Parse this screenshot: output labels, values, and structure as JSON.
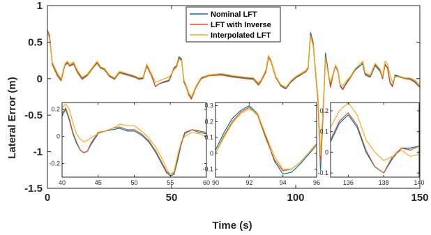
{
  "chart_data": [
    {
      "type": "line",
      "xlabel": "Time (s)",
      "ylabel": "Lateral Error (m)",
      "xlim": [
        0,
        150
      ],
      "ylim": [
        -1.5,
        1
      ],
      "xticks": [
        0,
        50,
        100,
        150
      ],
      "yticks": [
        -1.5,
        -1,
        -0.5,
        0,
        0.5,
        1
      ],
      "xtick_labels": [
        "0",
        "50",
        "100",
        "150"
      ],
      "ytick_labels": [
        "-1.5",
        "-1",
        "-0.5",
        "0",
        "0.5",
        "1"
      ],
      "legend_position": "top-center",
      "series": [
        {
          "name": "Nominal LFT",
          "color": "#0072BD",
          "x": [
            0,
            0.8,
            2,
            4,
            5.5,
            7,
            8,
            9,
            10.5,
            12,
            14,
            16,
            18,
            20,
            21.5,
            23,
            25,
            27,
            29,
            31,
            33,
            35,
            37,
            38.5,
            40,
            42,
            43.5,
            45,
            47,
            49,
            51,
            52,
            53,
            54,
            55,
            56,
            57,
            58,
            60,
            62,
            65,
            70,
            75,
            80,
            83,
            85,
            86,
            88,
            89,
            90,
            92,
            94,
            96,
            98,
            100,
            102,
            104,
            105,
            106,
            107,
            108,
            109,
            110,
            111,
            112,
            113,
            114,
            115,
            116,
            117,
            118,
            119,
            120,
            122,
            124,
            126,
            127,
            128,
            130,
            132,
            134,
            135,
            136,
            137,
            138,
            139,
            140,
            142,
            144,
            146,
            148,
            150
          ],
          "values": [
            0.66,
            0.6,
            0.2,
            0.05,
            -0.02,
            0.19,
            0.22,
            0.17,
            0.2,
            0.1,
            0,
            0.05,
            0.14,
            0.21,
            0.14,
            0.13,
            0.04,
            0.0,
            0.09,
            0.07,
            0.05,
            0.03,
            0.0,
            0.01,
            0.17,
            0.04,
            -0.11,
            -0.07,
            -0.05,
            -0.03,
            0.14,
            0.17,
            0.3,
            0.27,
            -0.05,
            -0.12,
            -0.22,
            -0.27,
            -0.11,
            0.01,
            0.05,
            0.06,
            0.03,
            0.01,
            0.0,
            -0.08,
            -0.03,
            0.1,
            0.3,
            0.25,
            0.02,
            -0.1,
            -0.14,
            -0.05,
            0.01,
            0.05,
            0.1,
            0.15,
            0.63,
            0.5,
            0.1,
            -0.3,
            -1.25,
            -0.5,
            0.35,
            0.12,
            -0.1,
            0.05,
            0.17,
            0.1,
            -0.1,
            -0.14,
            -0.08,
            0.02,
            0.12,
            0.18,
            0.2,
            0.05,
            0.02,
            0.18,
            0.1,
            0.0,
            0.2,
            0.15,
            -0.05,
            -0.1,
            0.05,
            0.03,
            0.01,
            0.0,
            -0.04,
            -0.11
          ]
        },
        {
          "name": "LFT with Inverse",
          "color": "#D95319",
          "x": [
            0,
            0.8,
            2,
            4,
            5.5,
            7,
            8,
            9,
            10.5,
            12,
            14,
            16,
            18,
            20,
            21.5,
            23,
            25,
            27,
            29,
            31,
            33,
            35,
            37,
            38.5,
            40,
            42,
            43.5,
            45,
            47,
            49,
            51,
            52,
            53,
            54,
            55,
            56,
            57,
            58,
            60,
            62,
            65,
            70,
            75,
            80,
            83,
            85,
            86,
            88,
            89,
            90,
            92,
            94,
            96,
            98,
            100,
            102,
            104,
            105,
            106,
            107,
            108,
            109,
            110,
            111,
            112,
            113,
            114,
            115,
            116,
            117,
            118,
            119,
            120,
            122,
            124,
            126,
            127,
            128,
            130,
            132,
            134,
            135,
            136,
            137,
            138,
            139,
            140,
            142,
            144,
            146,
            148,
            150
          ],
          "values": [
            0.66,
            0.58,
            0.19,
            0.04,
            -0.03,
            0.18,
            0.21,
            0.18,
            0.21,
            0.09,
            -0.01,
            0.04,
            0.13,
            0.22,
            0.15,
            0.12,
            0.03,
            -0.01,
            0.08,
            0.06,
            0.04,
            0.02,
            -0.01,
            0.0,
            0.18,
            0.03,
            -0.11,
            -0.07,
            -0.04,
            -0.02,
            0.15,
            0.18,
            0.28,
            0.26,
            -0.04,
            -0.12,
            -0.23,
            -0.28,
            -0.1,
            0.0,
            0.04,
            0.05,
            0.02,
            0.0,
            -0.01,
            -0.09,
            -0.04,
            0.09,
            0.29,
            0.24,
            0.01,
            -0.09,
            -0.13,
            -0.04,
            0.02,
            0.06,
            0.09,
            0.14,
            0.6,
            0.48,
            0.08,
            -0.32,
            -1.15,
            -0.48,
            0.3,
            0.1,
            -0.12,
            0.04,
            0.18,
            0.11,
            -0.11,
            -0.15,
            -0.09,
            0.01,
            0.13,
            0.2,
            0.22,
            0.07,
            0.03,
            0.2,
            0.11,
            0.01,
            0.19,
            0.14,
            -0.06,
            -0.11,
            0.04,
            0.02,
            0.0,
            -0.01,
            -0.05,
            -0.12
          ]
        },
        {
          "name": "Interpolated LFT",
          "color": "#EDB120",
          "x": [
            0,
            0.8,
            2,
            4,
            5.5,
            7,
            8,
            9,
            10.5,
            12,
            14,
            16,
            18,
            20,
            21.5,
            23,
            25,
            27,
            29,
            31,
            33,
            35,
            37,
            38.5,
            40,
            42,
            43.5,
            45,
            47,
            49,
            51,
            52,
            53,
            54,
            55,
            56,
            57,
            58,
            60,
            62,
            65,
            70,
            75,
            80,
            83,
            85,
            86,
            88,
            89,
            90,
            92,
            94,
            96,
            98,
            100,
            102,
            104,
            105,
            106,
            107,
            108,
            109,
            110,
            111,
            112,
            113,
            114,
            115,
            116,
            117,
            118,
            119,
            120,
            122,
            124,
            126,
            127,
            128,
            130,
            132,
            134,
            135,
            136,
            137,
            138,
            139,
            140,
            142,
            144,
            146,
            148,
            150
          ],
          "values": [
            0.64,
            0.55,
            0.22,
            0.08,
            0.0,
            0.2,
            0.24,
            0.19,
            0.23,
            0.12,
            0.02,
            0.06,
            0.15,
            0.24,
            0.16,
            0.14,
            0.05,
            0.01,
            0.1,
            0.08,
            0.06,
            0.04,
            0.01,
            0.02,
            0.2,
            0.06,
            -0.05,
            -0.03,
            0.0,
            0.02,
            0.12,
            0.15,
            0.26,
            0.25,
            -0.02,
            -0.1,
            -0.2,
            -0.25,
            -0.09,
            0.02,
            0.05,
            0.07,
            0.04,
            0.02,
            0.01,
            -0.06,
            -0.02,
            0.12,
            0.32,
            0.26,
            0.03,
            -0.08,
            -0.12,
            -0.03,
            0.03,
            0.07,
            0.11,
            0.16,
            0.58,
            0.45,
            0.12,
            -0.25,
            -1.05,
            -0.4,
            0.28,
            0.08,
            -0.05,
            0.06,
            0.19,
            0.12,
            -0.08,
            -0.1,
            -0.05,
            0.03,
            0.14,
            0.2,
            0.24,
            0.08,
            0.05,
            0.21,
            0.13,
            0.03,
            0.24,
            0.2,
            0.05,
            -0.05,
            0.02,
            0.03,
            0.01,
            0.01,
            -0.02,
            -0.08
          ]
        }
      ]
    },
    {
      "type": "line",
      "inset": 1,
      "xlim": [
        40,
        60
      ],
      "ylim": [
        -0.3,
        0.25
      ],
      "xticks": [
        40,
        45,
        50,
        55,
        60
      ],
      "yticks": [
        -0.2,
        0,
        0.2
      ],
      "xtick_labels": [
        "40",
        "45",
        "50",
        "55",
        "60"
      ],
      "ytick_labels": [
        "-0.2",
        "0",
        "0.2"
      ],
      "series": [
        {
          "color": "#0072BD",
          "x": [
            40,
            40.5,
            41,
            41.5,
            42,
            42.5,
            43,
            43.5,
            44,
            45,
            46,
            47,
            48,
            49,
            50,
            51,
            52,
            53,
            54,
            54.5,
            55,
            55.5,
            56,
            56.5,
            57,
            58,
            59,
            60
          ],
          "values": [
            0.15,
            0.2,
            0.12,
            0.02,
            -0.05,
            -0.1,
            -0.12,
            -0.11,
            -0.06,
            0.02,
            0.04,
            0.05,
            0.06,
            0.04,
            0.04,
            0.01,
            -0.04,
            -0.12,
            -0.22,
            -0.27,
            -0.29,
            -0.28,
            -0.18,
            -0.06,
            0.02,
            0.05,
            0.03,
            0.02
          ]
        },
        {
          "color": "#D95319",
          "x": [
            40,
            40.5,
            41,
            41.5,
            42,
            42.5,
            43,
            43.5,
            44,
            45,
            46,
            47,
            48,
            49,
            50,
            51,
            52,
            53,
            54,
            54.5,
            55,
            55.5,
            56,
            56.5,
            57,
            58,
            59,
            60
          ],
          "values": [
            0.17,
            0.21,
            0.13,
            0.03,
            -0.04,
            -0.1,
            -0.12,
            -0.11,
            -0.05,
            0.03,
            0.04,
            0.06,
            0.07,
            0.05,
            0.05,
            0.02,
            -0.03,
            -0.11,
            -0.21,
            -0.26,
            -0.28,
            -0.27,
            -0.16,
            -0.05,
            0.03,
            0.05,
            0.04,
            0.03
          ]
        },
        {
          "color": "#EDB120",
          "x": [
            40,
            40.5,
            41,
            41.5,
            42,
            42.5,
            43,
            43.5,
            44,
            45,
            46,
            47,
            48,
            49,
            50,
            51,
            52,
            53,
            54,
            54.5,
            55,
            55.5,
            56,
            56.5,
            57,
            58,
            59,
            60
          ],
          "values": [
            0.21,
            0.24,
            0.2,
            0.1,
            0.02,
            -0.02,
            -0.04,
            -0.03,
            -0.01,
            0.02,
            0.04,
            0.06,
            0.09,
            0.08,
            0.08,
            0.04,
            -0.01,
            -0.08,
            -0.18,
            -0.24,
            -0.28,
            -0.26,
            -0.14,
            -0.04,
            0.0,
            0.03,
            0.02,
            0.0
          ]
        }
      ]
    },
    {
      "type": "line",
      "inset": 2,
      "xlim": [
        90,
        96
      ],
      "ylim": [
        -0.15,
        0.32
      ],
      "xticks": [
        90,
        92,
        94,
        96
      ],
      "yticks": [
        -0.1,
        0,
        0.1,
        0.2,
        0.3
      ],
      "xtick_labels": [
        "90",
        "92",
        "94",
        "96"
      ],
      "ytick_labels": [
        "-0.1",
        "0",
        "0.1",
        "0.2",
        "0.3"
      ],
      "series": [
        {
          "color": "#0072BD",
          "x": [
            90,
            90.5,
            91,
            91.5,
            92,
            92.5,
            93,
            93.5,
            94,
            94.5,
            95,
            95.5,
            96
          ],
          "values": [
            0.02,
            0.13,
            0.22,
            0.27,
            0.3,
            0.25,
            0.1,
            -0.05,
            -0.13,
            -0.12,
            -0.07,
            -0.01,
            0.05
          ]
        },
        {
          "color": "#D95319",
          "x": [
            90,
            90.5,
            91,
            91.5,
            92,
            92.5,
            93,
            93.5,
            94,
            94.5,
            95,
            95.5,
            96
          ],
          "values": [
            0.0,
            0.11,
            0.2,
            0.26,
            0.29,
            0.24,
            0.09,
            -0.04,
            -0.11,
            -0.1,
            -0.06,
            0.0,
            0.06
          ]
        },
        {
          "color": "#EDB120",
          "x": [
            90,
            90.5,
            91,
            91.5,
            92,
            92.5,
            93,
            93.5,
            94,
            94.5,
            95,
            95.5,
            96
          ],
          "values": [
            0.0,
            0.1,
            0.19,
            0.25,
            0.28,
            0.25,
            0.11,
            -0.02,
            -0.1,
            -0.1,
            -0.06,
            0.0,
            0.05
          ]
        }
      ]
    },
    {
      "type": "line",
      "inset": 3,
      "xlim": [
        135,
        140
      ],
      "ylim": [
        -0.12,
        0.24
      ],
      "xticks": [
        136,
        138,
        140
      ],
      "yticks": [
        -0.1,
        0,
        0.1,
        0.2
      ],
      "xtick_labels": [
        "136",
        "138",
        "140"
      ],
      "ytick_labels": [
        "-0.1",
        "0",
        "0.1",
        "0.2"
      ],
      "series": [
        {
          "color": "#0072BD",
          "x": [
            135,
            135.5,
            136,
            136.5,
            137,
            137.5,
            138,
            138.5,
            139,
            139.5,
            140
          ],
          "values": [
            0.05,
            0.14,
            0.18,
            0.12,
            0.0,
            -0.07,
            -0.1,
            -0.03,
            0.02,
            0.02,
            0.03
          ]
        },
        {
          "color": "#D95319",
          "x": [
            135,
            135.5,
            136,
            136.5,
            137,
            137.5,
            138,
            138.5,
            139,
            139.5,
            140
          ],
          "values": [
            0.06,
            0.15,
            0.19,
            0.13,
            0.01,
            -0.07,
            -0.1,
            -0.02,
            0.02,
            0.01,
            0.03
          ]
        },
        {
          "color": "#EDB120",
          "x": [
            135,
            135.5,
            136,
            136.5,
            137,
            137.5,
            138,
            138.5,
            139,
            139.5,
            140
          ],
          "values": [
            0.12,
            0.2,
            0.24,
            0.18,
            0.06,
            0.0,
            -0.04,
            -0.02,
            0.01,
            -0.02,
            -0.01
          ]
        }
      ]
    }
  ]
}
